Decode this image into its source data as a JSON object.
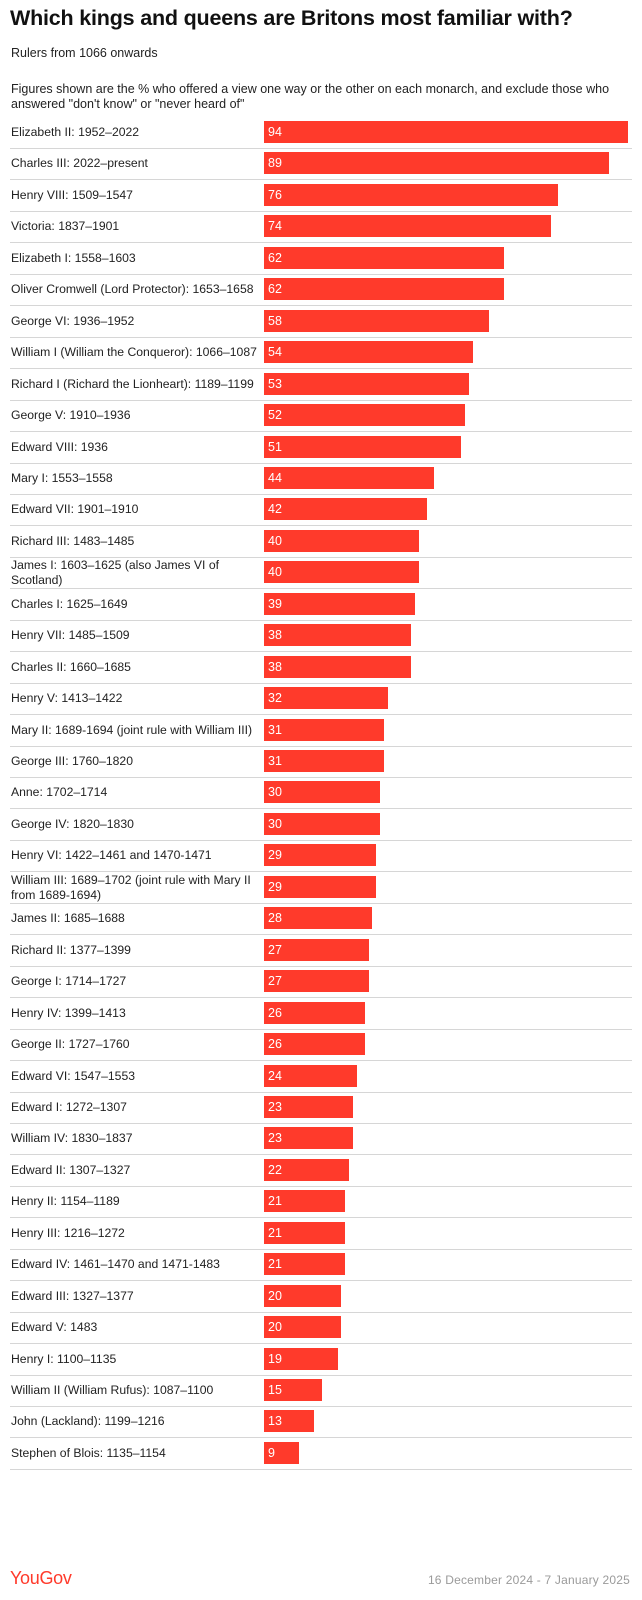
{
  "header": {
    "title": "Which kings and queens are Britons most familiar with?",
    "subtitle": "Rulers from 1066 onwards",
    "note": "Figures shown are the % who offered a view one way or the other on each monarch, and exclude those who answered \"don't know\" or \"never heard of\""
  },
  "footer": {
    "brand": "YouGov",
    "date_range": "16 December 2024 - 7 January 2025"
  },
  "colors": {
    "bar": "#ff3a2b",
    "brand": "#ff3a2b",
    "divider": "#d6d6d6"
  },
  "chart_data": {
    "type": "bar",
    "orientation": "horizontal",
    "title": "Which kings and queens are Britons most familiar with?",
    "subtitle": "Rulers from 1066 onwards",
    "xlim": [
      0,
      94
    ],
    "grid": false,
    "categories": [
      "Elizabeth II: 1952–2022",
      "Charles III: 2022–present",
      "Henry VIII: 1509–1547",
      "Victoria: 1837–1901",
      "Elizabeth I: 1558–1603",
      "Oliver Cromwell (Lord Protector): 1653–1658",
      "George VI: 1936–1952",
      "William I (William the Conqueror): 1066–1087",
      "Richard I (Richard the Lionheart): 1189–1199",
      "George V: 1910–1936",
      "Edward VIII: 1936",
      "Mary I: 1553–1558",
      "Edward VII: 1901–1910",
      "Richard III: 1483–1485",
      "James I: 1603–1625 (also James VI of Scotland)",
      "Charles I: 1625–1649",
      "Henry VII: 1485–1509",
      "Charles II: 1660–1685",
      "Henry V: 1413–1422",
      "Mary II: 1689-1694 (joint rule with William III)",
      "George III: 1760–1820",
      "Anne: 1702–1714",
      "George IV: 1820–1830",
      "Henry VI: 1422–1461 and 1470-1471",
      "William III: 1689–1702 (joint rule with Mary II from 1689-1694)",
      "James II: 1685–1688",
      "Richard II: 1377–1399",
      "George I: 1714–1727",
      "Henry IV: 1399–1413",
      "George II: 1727–1760",
      "Edward VI: 1547–1553",
      "Edward I: 1272–1307",
      "William IV: 1830–1837",
      "Edward II: 1307–1327",
      "Henry II: 1154–1189",
      "Henry III: 1216–1272",
      "Edward IV: 1461–1470 and 1471-1483",
      "Edward III: 1327–1377",
      "Edward V: 1483",
      "Henry I: 1100–1135",
      "William II (William Rufus): 1087–1100",
      "John (Lackland): 1199–1216",
      "Stephen of Blois: 1135–1154"
    ],
    "values": [
      94,
      89,
      76,
      74,
      62,
      62,
      58,
      54,
      53,
      52,
      51,
      44,
      42,
      40,
      40,
      39,
      38,
      38,
      32,
      31,
      31,
      30,
      30,
      29,
      29,
      28,
      27,
      27,
      26,
      26,
      24,
      23,
      23,
      22,
      21,
      21,
      21,
      20,
      20,
      19,
      15,
      13,
      9
    ]
  }
}
